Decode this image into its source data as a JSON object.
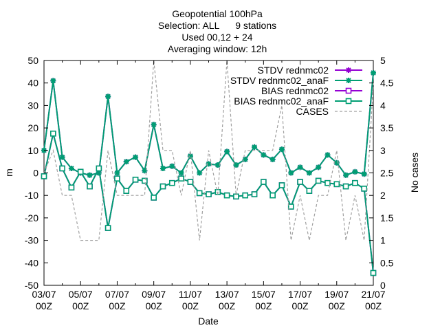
{
  "chart_data": {
    "type": "line",
    "title_lines": [
      "Geopotential 100hPa",
      "Selection: ALL      9 stations",
      "Used 00,12 + 24",
      "Averaging window: 12h"
    ],
    "xlabel": "Date",
    "ylabel": "m",
    "y2label": "No cases",
    "ylim": [
      -50,
      50
    ],
    "y2lim": [
      0,
      5
    ],
    "xlim": [
      0,
      36
    ],
    "grid": false,
    "legend_position": "top-right",
    "yticks": [
      "-50",
      "-40",
      "-30",
      "-20",
      "-10",
      "0",
      "10",
      "20",
      "30",
      "40",
      "50"
    ],
    "y2ticks": [
      "0",
      "0.5",
      "1",
      "1.5",
      "2",
      "2.5",
      "3",
      "3.5",
      "4",
      "4.5",
      "5"
    ],
    "xticks": [
      {
        "date": "03/07",
        "hour": "00Z"
      },
      {
        "date": "05/07",
        "hour": "00Z"
      },
      {
        "date": "07/07",
        "hour": "00Z"
      },
      {
        "date": "09/07",
        "hour": "00Z"
      },
      {
        "date": "11/07",
        "hour": "00Z"
      },
      {
        "date": "13/07",
        "hour": "00Z"
      },
      {
        "date": "15/07",
        "hour": "00Z"
      },
      {
        "date": "17/07",
        "hour": "00Z"
      },
      {
        "date": "19/07",
        "hour": "00Z"
      },
      {
        "date": "21/07",
        "hour": "00Z"
      }
    ],
    "series": [
      {
        "name": "STDV rednmc02",
        "axis": "y1",
        "style": "line-star",
        "color": "#9400d3",
        "values": [
          10,
          41,
          7,
          2,
          0,
          -1,
          0,
          34,
          0,
          5,
          7,
          1,
          21.5,
          2,
          3,
          0,
          7.5,
          0,
          4,
          3.5,
          9.5,
          3.5,
          6,
          11.5,
          8,
          6,
          10.5,
          0,
          2.5,
          0,
          2.5,
          8,
          4.5,
          -1,
          0.5,
          -0.5,
          44.5
        ]
      },
      {
        "name": "STDV rednmc02_anaF",
        "axis": "y1",
        "style": "line-star",
        "color": "#009e73",
        "values": [
          10,
          41,
          7,
          2,
          0,
          -1,
          0,
          34,
          0,
          5,
          7,
          1,
          21.5,
          2,
          3,
          0,
          7.5,
          0,
          4,
          3.5,
          9.5,
          3.5,
          6,
          11.5,
          8,
          6,
          10.5,
          0,
          2.5,
          0,
          2.5,
          8,
          4.5,
          -1,
          0.5,
          -0.5,
          44.5
        ]
      },
      {
        "name": "BIAS rednmc02",
        "axis": "y1",
        "style": "line-square",
        "color": "#9400d3",
        "values": [
          -1.5,
          17.5,
          2,
          -6.5,
          0.5,
          -6,
          2,
          -24.5,
          -2.5,
          -8,
          -3,
          -3.5,
          -11,
          -6,
          -4.5,
          -2.5,
          -4,
          -9,
          -9.5,
          -8.5,
          -10,
          -10.5,
          -10,
          -9.5,
          -4,
          -10,
          -5.5,
          -15,
          -4,
          -8,
          -3.5,
          -4.5,
          -5,
          -6,
          -4.5,
          -7,
          -44.5
        ]
      },
      {
        "name": "BIAS rednmc02_anaF",
        "axis": "y1",
        "style": "line-square",
        "color": "#009e73",
        "values": [
          -1.5,
          17.5,
          2,
          -6.5,
          0.5,
          -6,
          2,
          -24.5,
          -2.5,
          -8,
          -3,
          -3.5,
          -11,
          -6,
          -4.5,
          -2.5,
          -4,
          -9,
          -9.5,
          -8.5,
          -10,
          -10.5,
          -10,
          -9.5,
          -4,
          -10,
          -5.5,
          -15,
          -4,
          -8,
          -3.5,
          -4.5,
          -5,
          -6,
          -4.5,
          -7,
          -44.5
        ]
      },
      {
        "name": "CASES",
        "axis": "y2",
        "style": "dashed",
        "color": "#a0a0a0",
        "values": [
          2.5,
          3,
          2,
          2,
          1,
          1,
          1,
          3,
          2,
          2,
          2,
          2,
          5,
          3,
          3,
          2,
          3,
          1,
          3,
          2,
          5,
          2,
          3,
          3,
          3,
          3,
          4,
          1,
          2,
          1,
          2,
          2,
          3,
          1,
          2,
          1,
          4.5
        ]
      }
    ]
  }
}
